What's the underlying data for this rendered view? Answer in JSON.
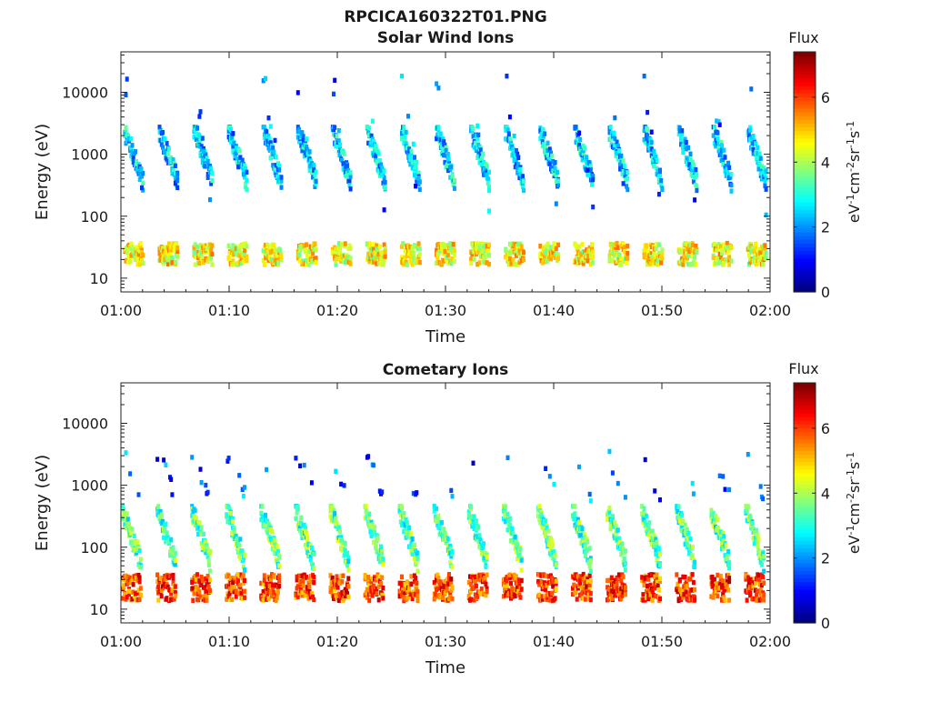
{
  "figure": {
    "title": "RPCICA160322T01.PNG"
  },
  "chart_data": [
    {
      "type": "heatmap",
      "title": "Solar Wind Ions",
      "xlabel": "Time",
      "ylabel": "Energy (eV)",
      "y_scale": "log",
      "xlim": [
        "01:00",
        "02:00"
      ],
      "ylim": [
        6,
        45000
      ],
      "x_ticks": [
        "01:00",
        "01:10",
        "01:20",
        "01:30",
        "01:40",
        "01:50",
        "02:00"
      ],
      "y_ticks": [
        "10",
        "100",
        "1000",
        "10000"
      ],
      "y_tick_values": [
        10,
        100,
        1000,
        10000
      ],
      "colorbar": {
        "label": "Flux",
        "units": "eV-1cm-2sr-1s-1",
        "range": [
          0,
          7.4
        ],
        "ticks": [
          "0",
          "2",
          "4",
          "6"
        ],
        "tick_values": [
          0,
          2,
          4,
          6
        ],
        "colormap": "jet"
      },
      "sweep_period_min": 3.2,
      "sweep_count": 19,
      "sweep_start_min": 0.2,
      "bands": [
        {
          "name": "low-energy",
          "energy_range_eV": [
            18,
            40
          ],
          "flux": 4.6
        },
        {
          "name": "high-energy",
          "energy_range_eV": [
            250,
            3000
          ],
          "flux": 2.4
        },
        {
          "name": "sparse",
          "energy_range_eV": [
            60,
            20000
          ],
          "flux": 1.8
        }
      ]
    },
    {
      "type": "heatmap",
      "title": "Cometary Ions",
      "xlabel": "Time",
      "ylabel": "Energy (eV)",
      "y_scale": "log",
      "xlim": [
        "01:00",
        "02:00"
      ],
      "ylim": [
        6,
        45000
      ],
      "x_ticks": [
        "01:00",
        "01:10",
        "01:20",
        "01:30",
        "01:40",
        "01:50",
        "02:00"
      ],
      "y_ticks": [
        "10",
        "100",
        "1000",
        "10000"
      ],
      "y_tick_values": [
        10,
        100,
        1000,
        10000
      ],
      "colorbar": {
        "label": "Flux",
        "units": "eV-1cm-2sr-1s-1",
        "range": [
          0,
          7.4
        ],
        "ticks": [
          "0",
          "2",
          "4",
          "6"
        ],
        "tick_values": [
          0,
          2,
          4,
          6
        ],
        "colormap": "jet"
      },
      "sweep_period_min": 3.2,
      "sweep_count": 19,
      "sweep_start_min": 0.0,
      "bands": [
        {
          "name": "low-energy",
          "energy_range_eV": [
            15,
            40
          ],
          "flux": 6.0
        },
        {
          "name": "mid-energy",
          "energy_range_eV": [
            40,
            500
          ],
          "flux": 3.4
        },
        {
          "name": "sparse",
          "energy_range_eV": [
            500,
            4000
          ],
          "flux": 1.6
        }
      ]
    }
  ]
}
